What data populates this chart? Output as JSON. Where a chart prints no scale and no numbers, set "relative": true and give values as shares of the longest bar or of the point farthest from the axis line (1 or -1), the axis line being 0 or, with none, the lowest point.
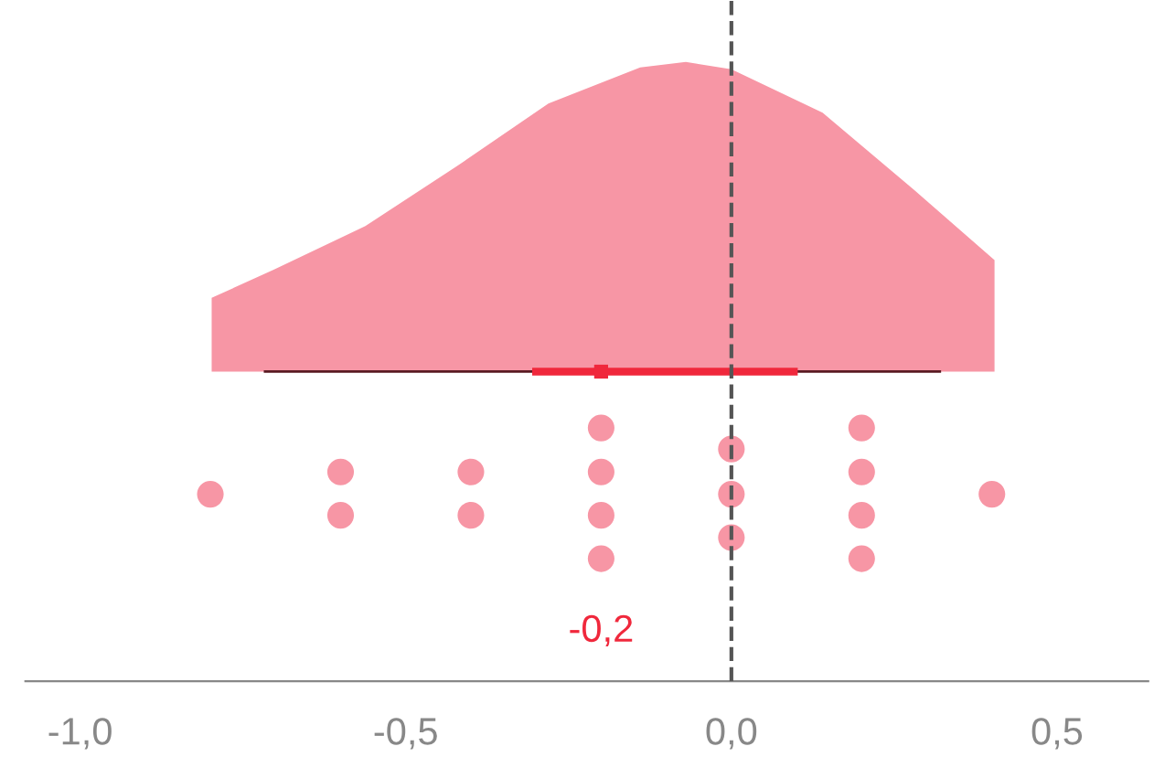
{
  "chart_data": {
    "type": "area",
    "relative": true,
    "tick_labels": "x",
    "grid": false,
    "legend": false,
    "xlim": [
      -1.084,
      0.64
    ],
    "xticks": [
      {
        "value": -1.0,
        "label": "-1,0"
      },
      {
        "value": -0.5,
        "label": "-0,5"
      },
      {
        "value": 0.0,
        "label": "0,0"
      },
      {
        "value": 0.5,
        "label": "0,5"
      }
    ],
    "series": [
      {
        "color": "#f796a5",
        "x": [
          -0.798,
          -0.702,
          -0.562,
          -0.421,
          -0.281,
          -0.14,
          -0.07,
          0.0,
          0.14,
          0.281,
          0.404
        ],
        "values": [
          0.619,
          0.665,
          0.735,
          0.832,
          0.933,
          0.991,
          1.0,
          0.988,
          0.918,
          0.793,
          0.68
        ]
      },
      {
        "type": "line",
        "color": "#5a1a22",
        "x": [
          -0.716,
          0.32
        ],
        "values": [
          0.5,
          0.5
        ]
      },
      {
        "type": "line",
        "color": "#f0283c",
        "x": [
          -0.3,
          0.096
        ],
        "values": [
          0.5,
          0.5
        ]
      },
      {
        "type": "scatter",
        "marker": "square",
        "color": "#f0283c",
        "x": [
          -0.2
        ],
        "values": [
          0.5
        ]
      },
      {
        "type": "scatter",
        "marker": "circle",
        "color": "#f796a5",
        "x": [
          -0.8,
          -0.6,
          -0.6,
          -0.4,
          -0.4,
          -0.2,
          -0.2,
          -0.2,
          -0.2,
          0.0,
          0.0,
          0.0,
          0.2,
          0.2,
          0.2,
          0.2,
          0.4
        ],
        "values": [
          0.302,
          0.338,
          0.268,
          0.338,
          0.268,
          0.409,
          0.338,
          0.268,
          0.198,
          0.375,
          0.302,
          0.232,
          0.409,
          0.338,
          0.268,
          0.198,
          0.302
        ]
      }
    ],
    "ref_lines": [
      {
        "axis": "x",
        "value": 0.0,
        "color": "#555555",
        "line_style": "dashed"
      }
    ],
    "annotations": [
      "-0,2"
    ]
  }
}
